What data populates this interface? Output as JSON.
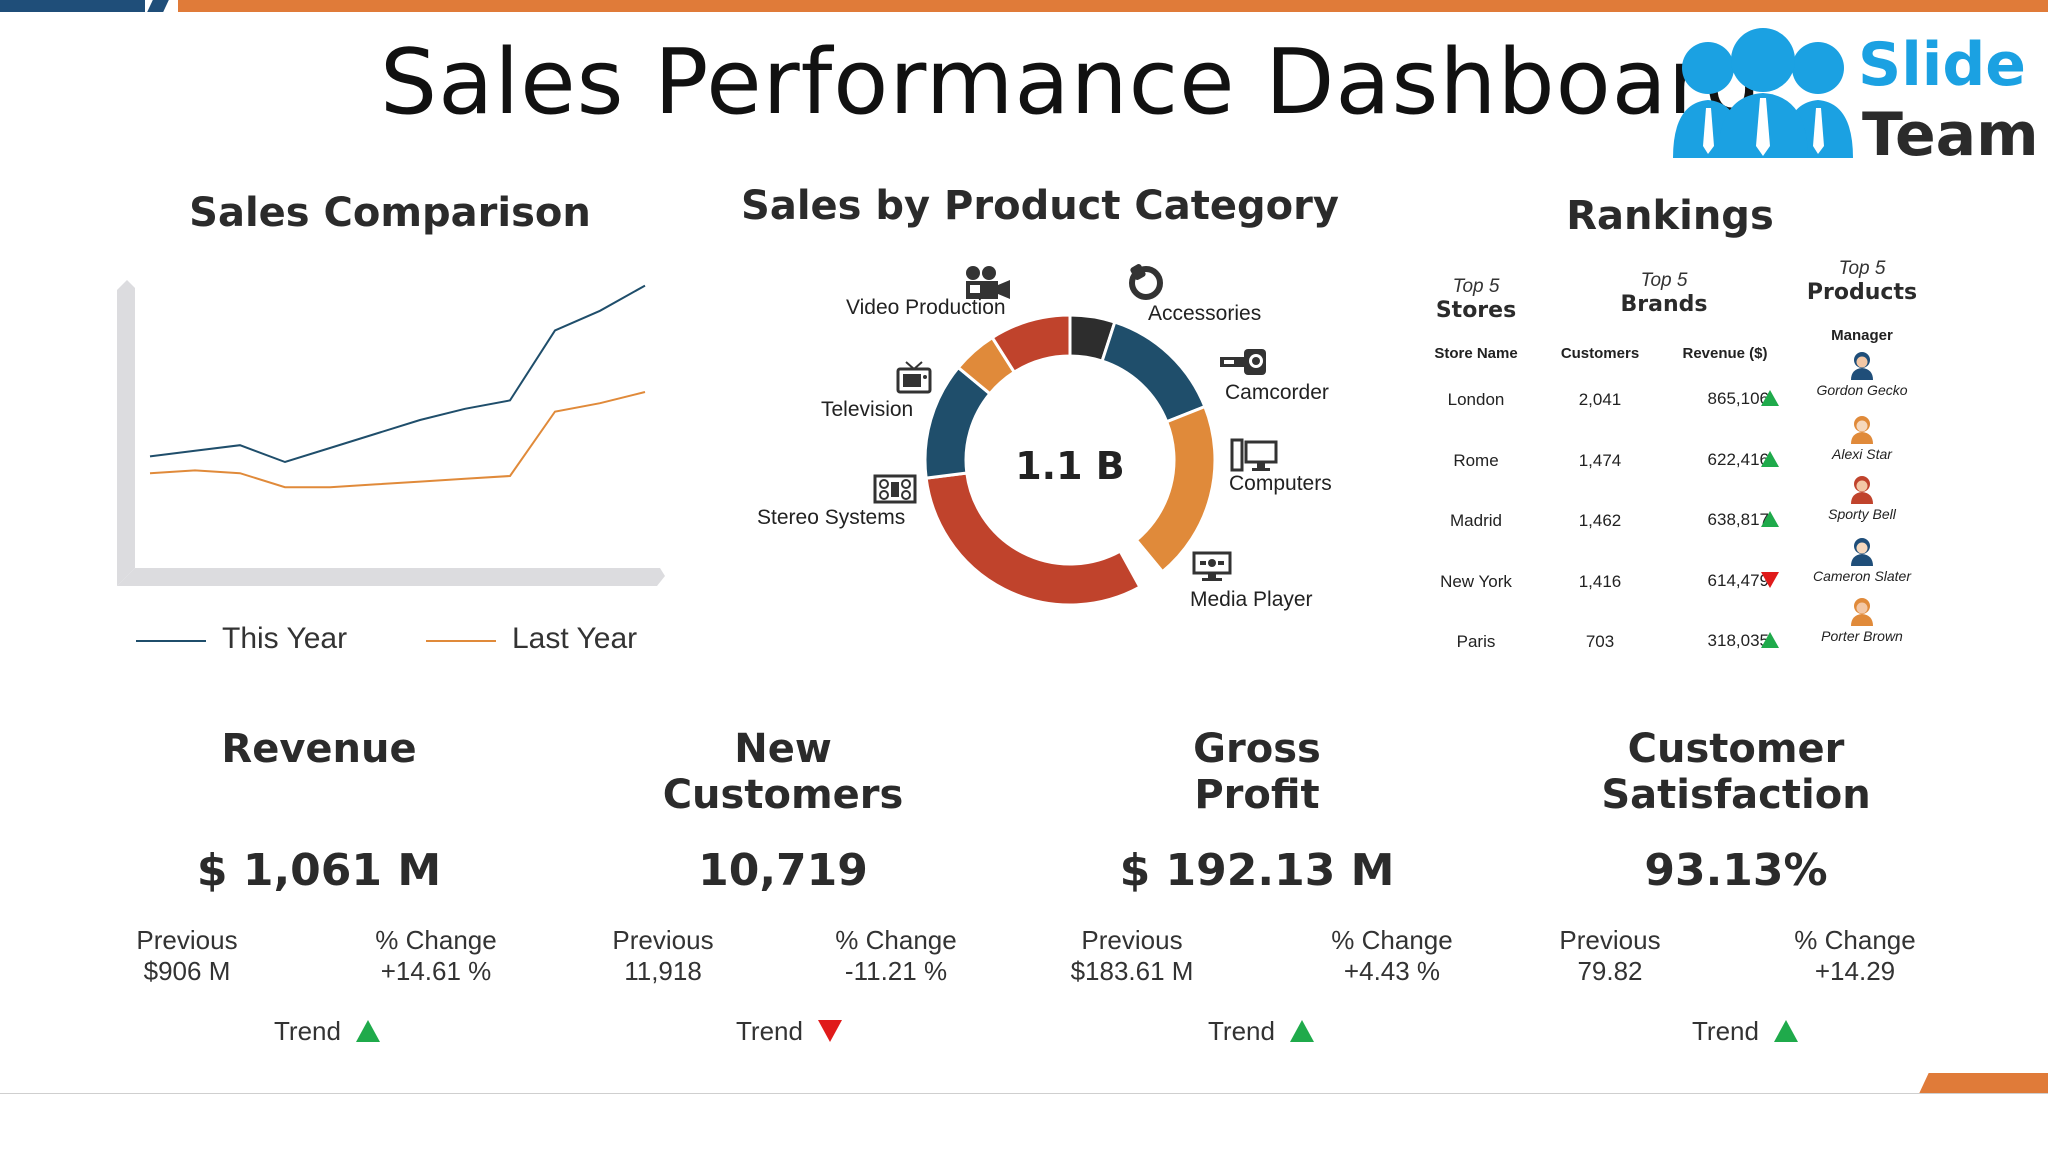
{
  "header": {
    "title": "Sales Performance Dashboard",
    "logo": {
      "line1": "Slide",
      "line2": "Team"
    },
    "accent_color": "#e07b39",
    "dark_color": "#1f4e79"
  },
  "sales_comparison": {
    "title": "Sales Comparison",
    "legend": [
      {
        "label": "This Year",
        "color": "#1f4e6b"
      },
      {
        "label": "Last Year",
        "color": "#e08a3a"
      }
    ]
  },
  "product_category": {
    "title": "Sales by Product Category",
    "center_value": "1.1 B",
    "labels": {
      "video": "Video Production",
      "accessories": "Accessories",
      "television": "Television",
      "camcorder": "Camcorder",
      "computers": "Computers",
      "stereo": "Stereo Systems",
      "media": "Media Player"
    }
  },
  "rankings": {
    "title": "Rankings",
    "groups": [
      {
        "top": "Top 5",
        "name": "Stores"
      },
      {
        "top": "Top 5",
        "name": "Brands"
      },
      {
        "top": "Top 5",
        "name": "Products"
      }
    ],
    "columns": {
      "store": "Store Name",
      "customers": "Customers",
      "revenue": "Revenue ($)",
      "manager": "Manager"
    },
    "rows": [
      {
        "store": "London",
        "customers": "2,041",
        "revenue": "865,106",
        "trend": "up",
        "manager": "Gordon Gecko",
        "avatar": "male"
      },
      {
        "store": "Rome",
        "customers": "1,474",
        "revenue": "622,416",
        "trend": "up",
        "manager": "Alexi Star",
        "avatar": "female"
      },
      {
        "store": "Madrid",
        "customers": "1,462",
        "revenue": "638,817",
        "trend": "up",
        "manager": "Sporty Bell",
        "avatar": "female2"
      },
      {
        "store": "New York",
        "customers": "1,416",
        "revenue": "614,479",
        "trend": "down",
        "manager": "Cameron Slater",
        "avatar": "female3"
      },
      {
        "store": "Paris",
        "customers": "703",
        "revenue": "318,035",
        "trend": "up",
        "manager": "Porter Brown",
        "avatar": "male2"
      }
    ]
  },
  "kpis": [
    {
      "title": [
        "Revenue",
        ""
      ],
      "value": "$ 1,061 M",
      "previous_label": "Previous",
      "previous": "$906 M",
      "change_label": "% Change",
      "change": "+14.61 %",
      "trend_label": "Trend",
      "trend": "up"
    },
    {
      "title": [
        "New",
        "Customers"
      ],
      "value": "10,719",
      "previous_label": "Previous",
      "previous": "11,918",
      "change_label": "% Change",
      "change": "-11.21 %",
      "trend_label": "Trend",
      "trend": "down"
    },
    {
      "title": [
        "Gross",
        "Profit"
      ],
      "value": "$ 192.13 M",
      "previous_label": "Previous",
      "previous": "$183.61 M",
      "change_label": "% Change",
      "change": "+4.43 %",
      "trend_label": "Trend",
      "trend": "up"
    },
    {
      "title": [
        "Customer",
        "Satisfaction"
      ],
      "value": "93.13%",
      "previous_label": "Previous",
      "previous": "79.82",
      "change_label": "% Change",
      "change": "+14.29",
      "trend_label": "Trend",
      "trend": "up"
    }
  ],
  "chart_data": [
    {
      "type": "line",
      "x": [
        0,
        1,
        2,
        3,
        4,
        5,
        6,
        7,
        8,
        9,
        10,
        11
      ],
      "series": [
        {
          "name": "This Year",
          "color": "#1f4e6b",
          "values": [
            37,
            39,
            41,
            35,
            40,
            45,
            50,
            54,
            57,
            82,
            89,
            98
          ]
        },
        {
          "name": "Last Year",
          "color": "#e08a3a",
          "values": [
            31,
            32,
            31,
            26,
            26,
            27,
            28,
            29,
            30,
            53,
            56,
            60
          ]
        }
      ],
      "ylim": [
        0,
        100
      ],
      "grid": false,
      "legend": "bottom"
    },
    {
      "type": "pie",
      "donut": true,
      "center_label": "1.1 B",
      "slices": [
        {
          "value": 5,
          "color": "#2d2d2d"
        },
        {
          "value": 14,
          "color": "#1f4e6b"
        },
        {
          "value": 20,
          "color": "#e08a3a"
        },
        {
          "value": 3,
          "color": "#ffffff"
        },
        {
          "value": 31,
          "color": "#c0432c"
        },
        {
          "value": 13,
          "color": "#1f4e6b"
        },
        {
          "value": 5,
          "color": "#e08a3a"
        },
        {
          "value": 9,
          "color": "#c0432c"
        }
      ]
    }
  ]
}
